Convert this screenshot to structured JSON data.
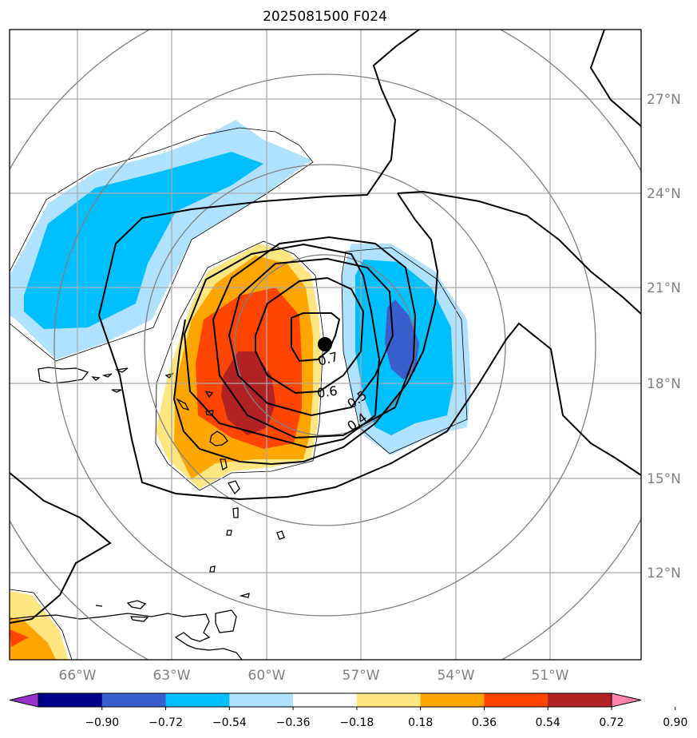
{
  "title": "2025081500 F024",
  "latitude_labels": [
    "27°N",
    "24°N",
    "21°N",
    "18°N",
    "15°N",
    "12°N"
  ],
  "longitude_labels": [
    "66°W",
    "63°W",
    "60°W",
    "57°W",
    "54°W",
    "51°W"
  ],
  "contour_labels": [
    "0.7",
    "0.6",
    "0.5",
    "0.4"
  ],
  "colorbar": {
    "tick_labels": [
      "−0.90",
      "−0.72",
      "−0.54",
      "−0.36",
      "−0.18",
      "0.18",
      "0.36",
      "0.54",
      "0.72",
      "0.90"
    ],
    "colors": [
      "#9932cc",
      "#00008b",
      "#3a5fcd",
      "#00bfff",
      "#b0e2ff",
      "#ffffff",
      "#ffe680",
      "#ffa500",
      "#ff4500",
      "#b22222",
      "#ff82ab"
    ]
  },
  "colors": {
    "gridline": "#aaaaaa",
    "range_rings": "#808080",
    "contours": "#000000",
    "coastline": "#000000"
  },
  "center_marker": "black filled circle"
}
